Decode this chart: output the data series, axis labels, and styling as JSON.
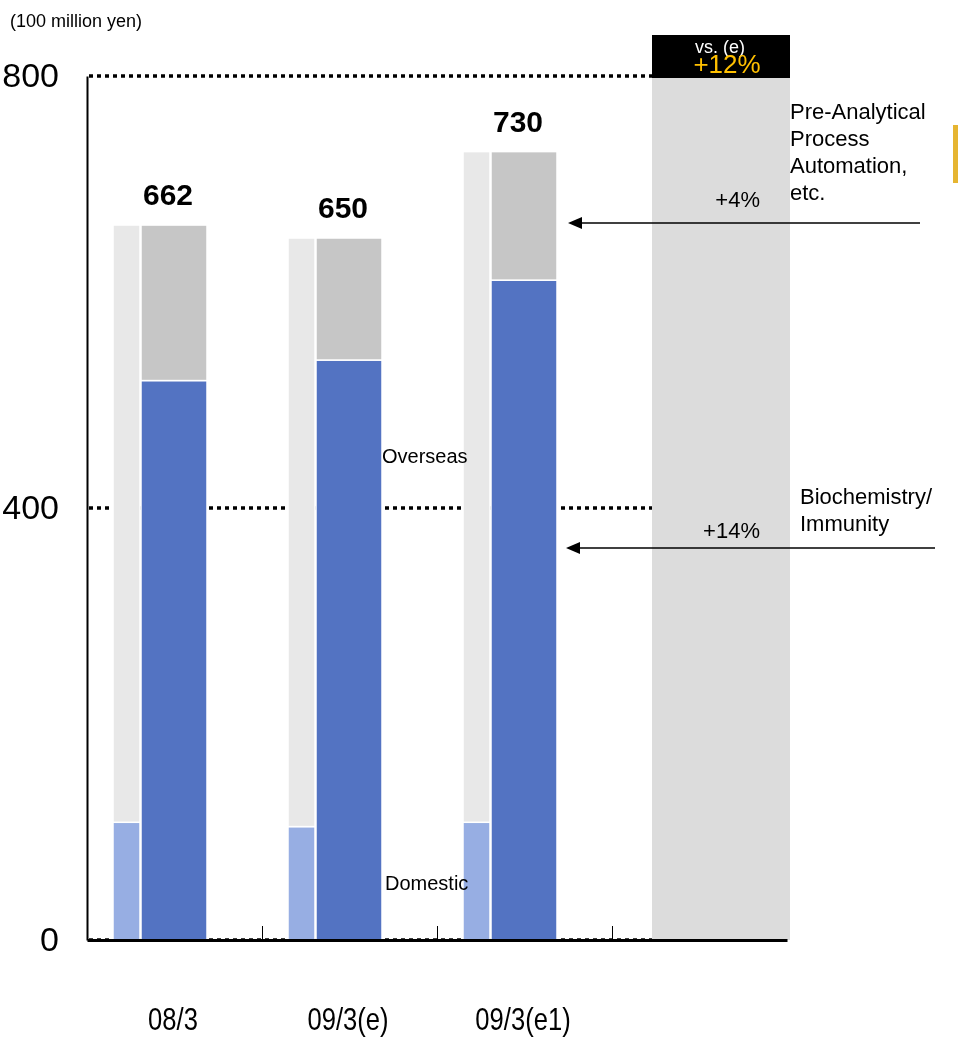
{
  "chart_data": [
    {
      "type": "bar",
      "ylabel": "(100 million yen)",
      "categories": [
        null,
        null,
        null
      ],
      "stacked": true,
      "series": [
        {
          "name": "Domestic",
          "color": "#97aee3",
          "values": [
            109,
            105,
            109
          ]
        },
        {
          "name": "Overseas",
          "color": "#e8e8e8",
          "values": [
            553,
            545,
            621
          ]
        }
      ],
      "ylim": [
        0,
        800
      ],
      "yticks": [
        0,
        400,
        800
      ],
      "tick_labels": "y",
      "grid": "y"
    },
    {
      "type": "bar",
      "categories": [
        "08/3",
        "09/3(e)",
        "09/3(e1)"
      ],
      "stacked": true,
      "series": [
        {
          "name": "Biochemistry/ Immunity",
          "color": "#5373c2",
          "values": [
            518,
            537,
            611
          ]
        },
        {
          "name": "Pre-Analytical Process Automation, etc.",
          "color": "#c6c6c6",
          "values": [
            144,
            113,
            119
          ]
        }
      ],
      "totals": [
        "662",
        "650",
        "730"
      ],
      "ylim": [
        0,
        800
      ],
      "tick_labels": "x",
      "grid": false,
      "annotations": [
        "+4%",
        "+14%",
        "vs. (e)",
        "+12%"
      ]
    }
  ]
}
